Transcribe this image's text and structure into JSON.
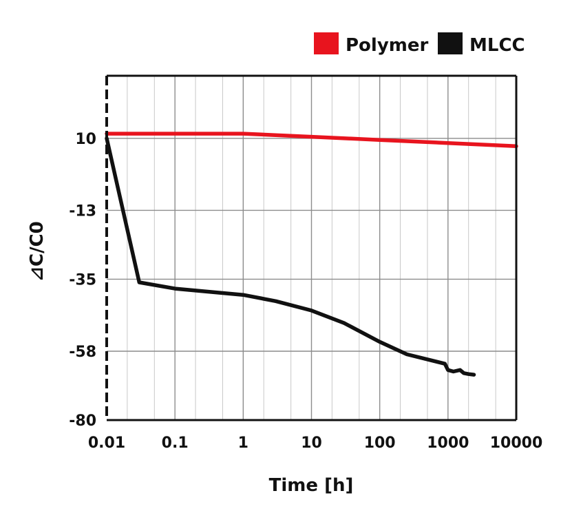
{
  "chart_data": {
    "type": "line",
    "title": "",
    "xlabel": "Time [h]",
    "ylabel": "⊿C/C0",
    "x_scale": "log",
    "xlim": [
      0.01,
      10000
    ],
    "ylim": [
      -80,
      30
    ],
    "x_ticks": [
      "0.01",
      "0.1",
      "1",
      "10",
      "100",
      "1000",
      "10000"
    ],
    "y_ticks": [
      {
        "value": 10,
        "label": "10"
      },
      {
        "value": -13,
        "label": "-13"
      },
      {
        "value": -35,
        "label": "-35"
      },
      {
        "value": -58,
        "label": "-58"
      },
      {
        "value": -80,
        "label": "-80"
      }
    ],
    "grid": true,
    "legend": {
      "position": "top-right"
    },
    "series": [
      {
        "name": "Polymer",
        "color": "#e8141e",
        "x": [
          0.01,
          1,
          10,
          100,
          1000,
          10000
        ],
        "y": [
          11.5,
          11.5,
          10.5,
          9.5,
          8.5,
          7.5
        ]
      },
      {
        "name": "MLCC",
        "color": "#111111",
        "x": [
          0.01,
          0.03,
          0.1,
          1,
          3,
          10,
          30,
          100,
          250,
          900,
          1000,
          1200,
          1500,
          1700,
          2000,
          2400
        ],
        "y": [
          10,
          -36,
          -38,
          -40,
          -42,
          -45,
          -49,
          -55,
          -59,
          -62,
          -64,
          -64.5,
          -64,
          -65,
          -65.3,
          -65.5
        ]
      }
    ]
  }
}
